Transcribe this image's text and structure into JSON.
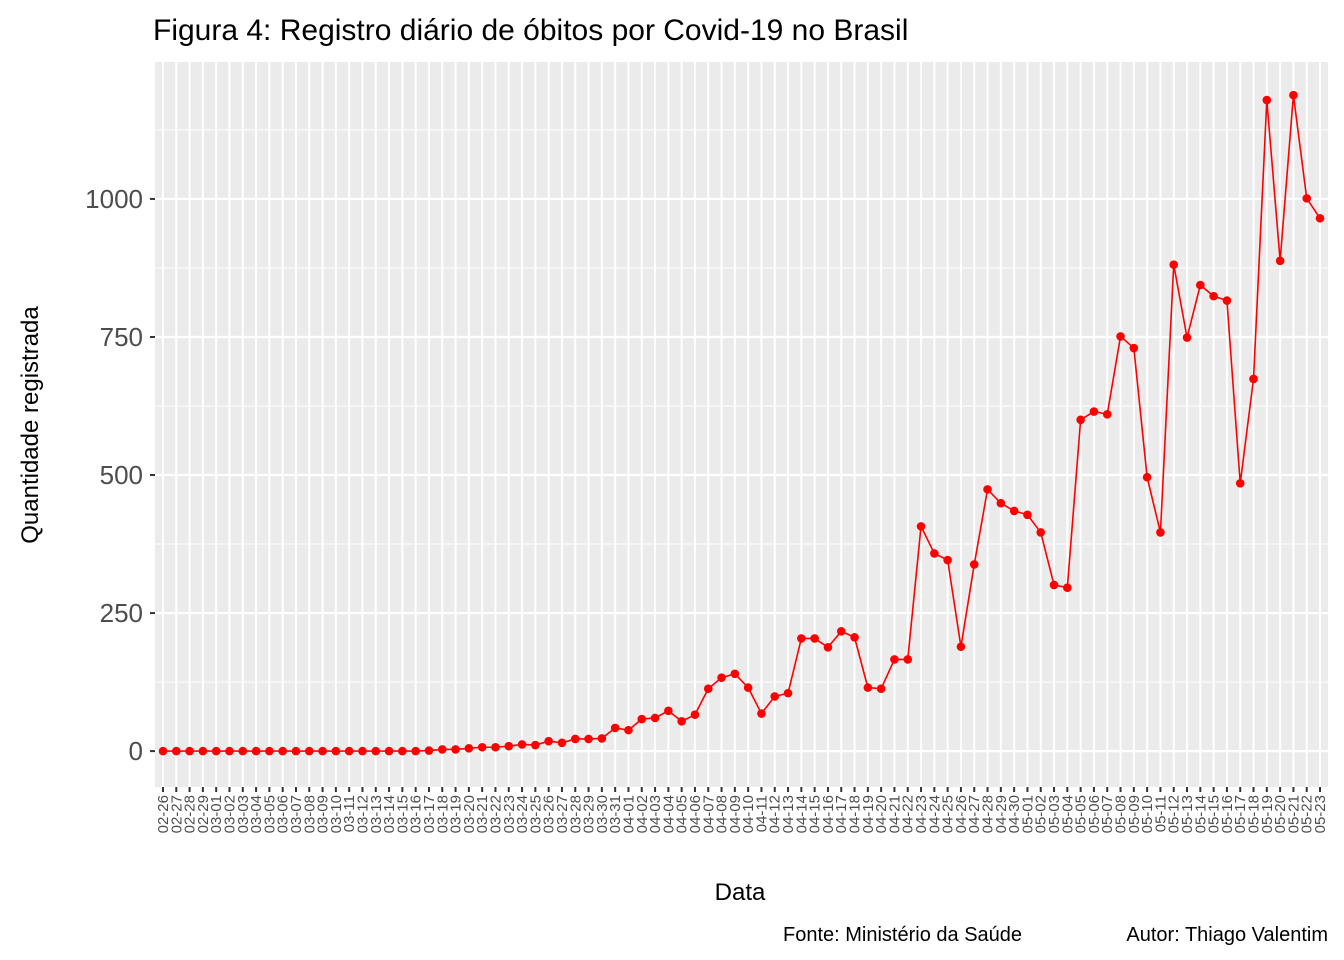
{
  "chart_data": {
    "type": "line",
    "title": "Figura 4: Registro diário de óbitos por Covid-19 no Brasil",
    "x_label": "Data",
    "y_label": "Quantidade registrada",
    "caption": [
      "Fonte: Ministério da Saúde",
      "Autor: Thiago Valentim"
    ],
    "categories": [
      "02-26",
      "02-27",
      "02-28",
      "02-29",
      "03-01",
      "03-02",
      "03-03",
      "03-04",
      "03-05",
      "03-06",
      "03-07",
      "03-08",
      "03-09",
      "03-10",
      "03-11",
      "03-12",
      "03-13",
      "03-14",
      "03-15",
      "03-16",
      "03-17",
      "03-18",
      "03-19",
      "03-20",
      "03-21",
      "03-22",
      "03-23",
      "03-24",
      "03-25",
      "03-26",
      "03-27",
      "03-28",
      "03-29",
      "03-30",
      "03-31",
      "04-01",
      "04-02",
      "04-03",
      "04-04",
      "04-05",
      "04-06",
      "04-07",
      "04-08",
      "04-09",
      "04-10",
      "04-11",
      "04-12",
      "04-13",
      "04-14",
      "04-15",
      "04-16",
      "04-17",
      "04-18",
      "04-19",
      "04-20",
      "04-21",
      "04-22",
      "04-23",
      "04-24",
      "04-25",
      "04-26",
      "04-27",
      "04-28",
      "04-29",
      "04-30",
      "05-01",
      "05-02",
      "05-03",
      "05-04",
      "05-05",
      "05-06",
      "05-07",
      "05-08",
      "05-09",
      "05-10",
      "05-11",
      "05-12",
      "05-13",
      "05-14",
      "05-15",
      "05-16",
      "05-17",
      "05-18",
      "05-19",
      "05-20",
      "05-21",
      "05-22",
      "05-23"
    ],
    "values": [
      0,
      0,
      0,
      0,
      0,
      0,
      0,
      0,
      0,
      0,
      0,
      0,
      0,
      0,
      0,
      0,
      0,
      0,
      0,
      0,
      1,
      3,
      3,
      5,
      7,
      7,
      9,
      12,
      11,
      18,
      15,
      22,
      22,
      23,
      42,
      38,
      58,
      60,
      73,
      54,
      66,
      113,
      133,
      140,
      115,
      68,
      99,
      105,
      204,
      204,
      188,
      217,
      206,
      115,
      113,
      166,
      166,
      407,
      358,
      346,
      189,
      338,
      474,
      449,
      435,
      428,
      396,
      301,
      296,
      600,
      615,
      610,
      751,
      730,
      496,
      396,
      881,
      749,
      844,
      824,
      816,
      485,
      674,
      1179,
      888,
      1188,
      1001,
      965
    ],
    "color": "#ff0000",
    "ylim": [
      -65,
      1248
    ],
    "yticks": [
      0,
      250,
      500,
      750,
      1000
    ],
    "grid": true
  }
}
